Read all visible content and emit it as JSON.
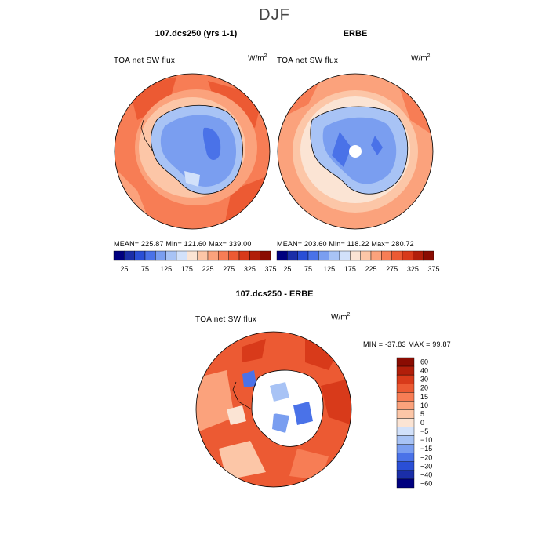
{
  "figure_title": "DJF",
  "panels": [
    {
      "title": "107.dcs250 (yrs 1-1)",
      "variable": "TOA net SW flux",
      "units_base": "W/m",
      "units_exp": "2",
      "stats": "MEAN= 225.87    Min= 121.60    Max= 339.00"
    },
    {
      "title": "ERBE",
      "variable": "TOA net SW flux",
      "units_base": "W/m",
      "units_exp": "2",
      "stats": "MEAN= 203.60    Min= 118.22    Max= 280.72"
    },
    {
      "title": "107.dcs250 - ERBE",
      "variable": "TOA net SW flux",
      "units_base": "W/m",
      "units_exp": "2",
      "stats": "MIN = -37.83 MAX =  99.87"
    }
  ],
  "abs_colorbar": {
    "labels": [
      "25",
      "75",
      "125",
      "175",
      "225",
      "275",
      "325",
      "375"
    ],
    "colors": [
      "#00007f",
      "#1a2ea8",
      "#2a4fd6",
      "#4a72e8",
      "#7a9ef0",
      "#a8c3f5",
      "#d2e1fa",
      "#fbe4d4",
      "#fcc6a7",
      "#fba27c",
      "#f77d55",
      "#ec5a33",
      "#d83a1a",
      "#b11e0a",
      "#8a0c02"
    ]
  },
  "diff_colorbar": {
    "labels": [
      "60",
      "40",
      "30",
      "20",
      "15",
      "10",
      "5",
      "0",
      "−5",
      "−10",
      "−15",
      "−20",
      "−30",
      "−40",
      "−60"
    ],
    "colors": [
      "#8a0c02",
      "#b11e0a",
      "#d83a1a",
      "#ec5a33",
      "#f77d55",
      "#fba27c",
      "#fcc6a7",
      "#fbe4d4",
      "#d2e1fa",
      "#a8c3f5",
      "#7a9ef0",
      "#4a72e8",
      "#2a4fd6",
      "#1a2ea8",
      "#00007f"
    ]
  }
}
